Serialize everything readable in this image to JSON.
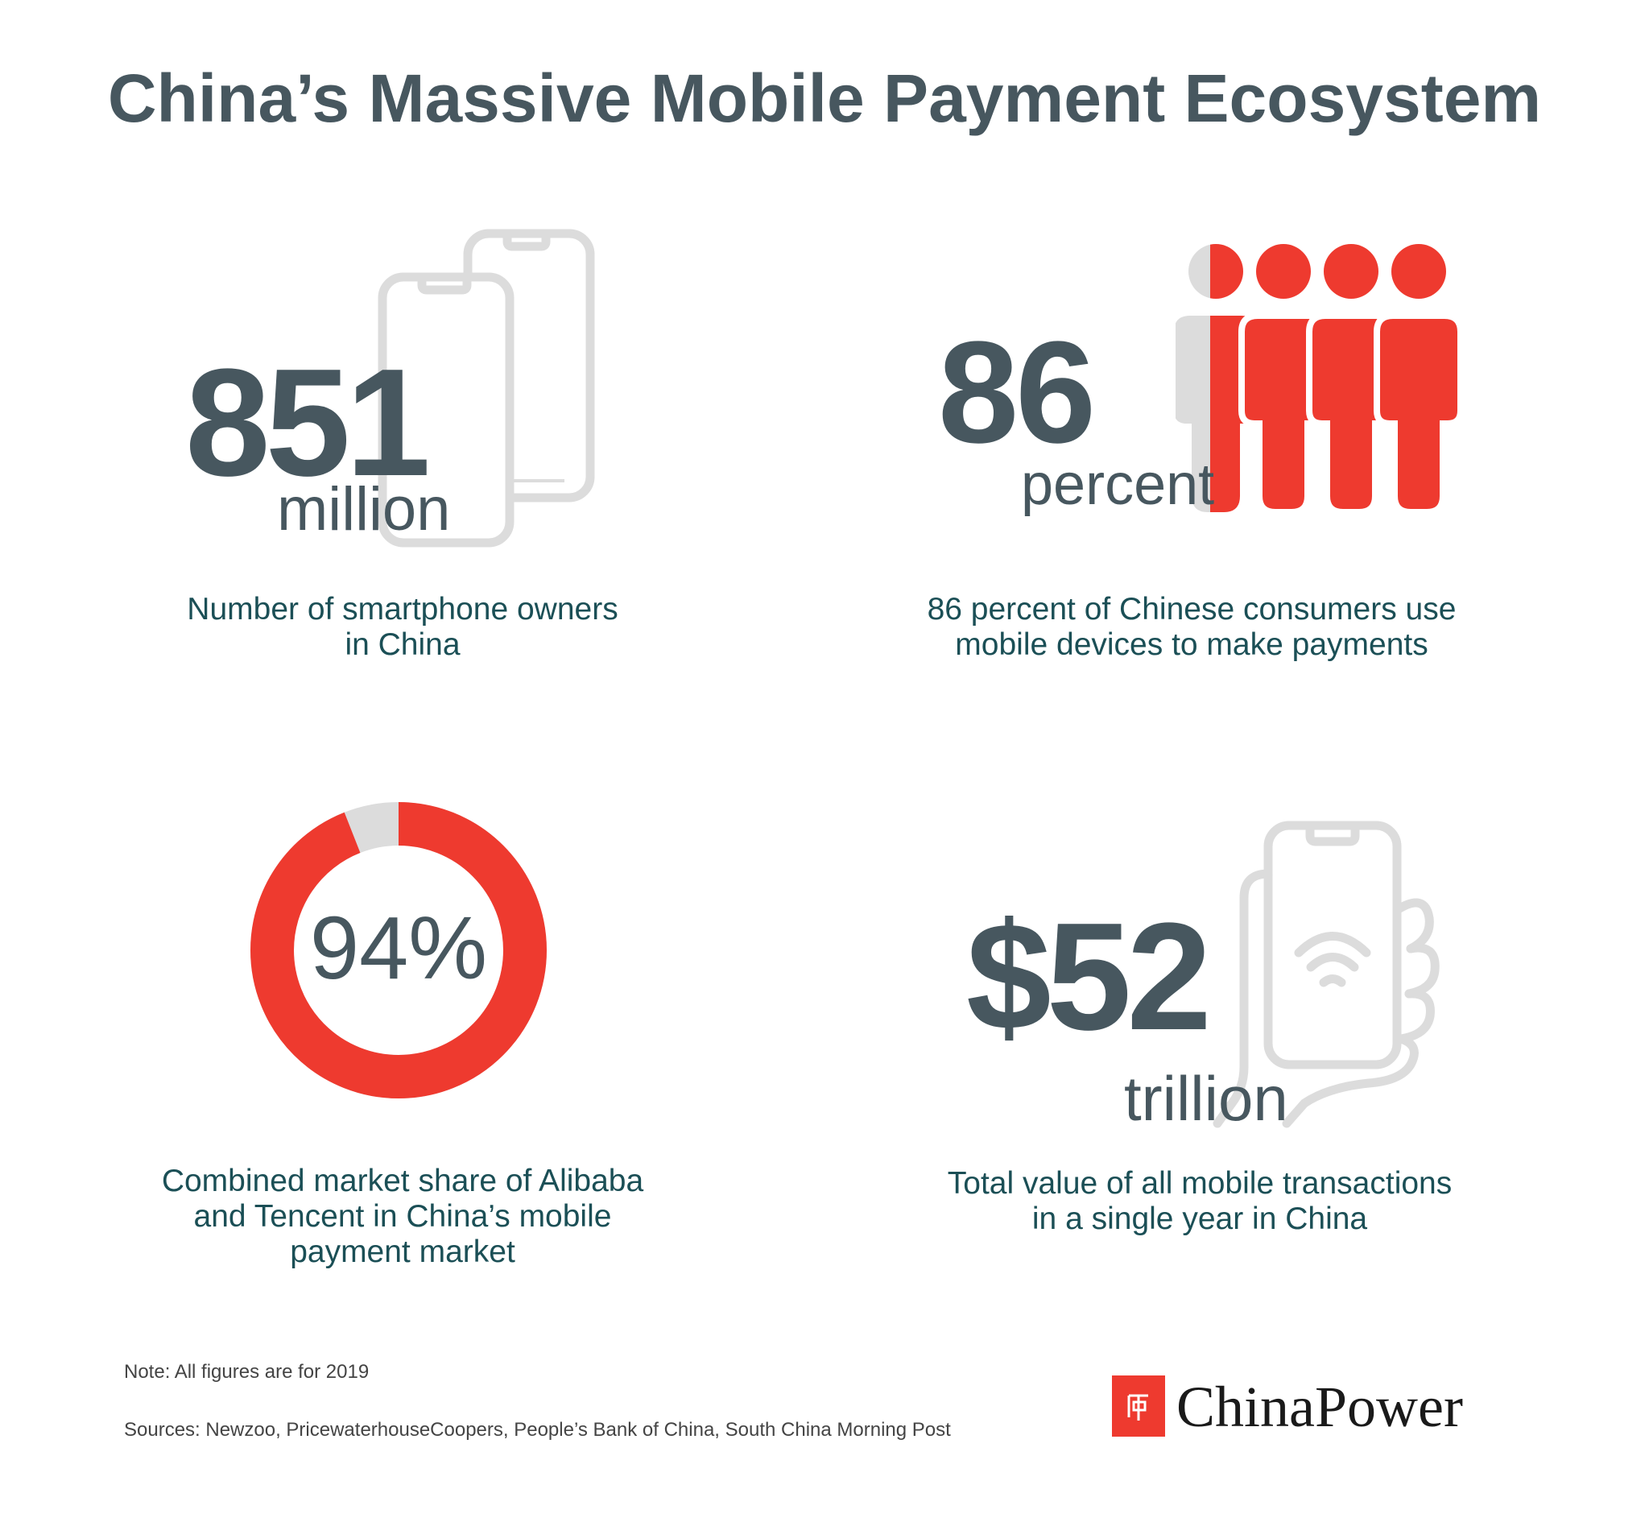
{
  "title": "China’s Massive Mobile Payment Ecosystem",
  "stats": {
    "smartphones": {
      "value": "851",
      "unit": "million",
      "description": "Number of smartphone owners in China",
      "icon": "two-smartphones-icon"
    },
    "mobile_payment_users": {
      "value": "86",
      "unit": "percent",
      "description": "86 percent of Chinese consumers use mobile devices to make payments",
      "icon": "people-group-icon",
      "level_percent": 86
    },
    "market_share": {
      "value": "94%",
      "description": "Combined market share of Alibaba and Tencent in China’s mobile payment market",
      "icon": "donut-ring-icon",
      "level_percent": 94
    },
    "transactions": {
      "value": "$52",
      "unit": "trillion",
      "description": "Total value of all mobile transactions in a single year in China",
      "icon": "hand-holding-phone-icon"
    }
  },
  "footer": {
    "note": "Note: All figures are for 2019",
    "sources": "Sources: Newzoo, PricewaterhouseCoopers, People’s Bank of China, South China Morning Post"
  },
  "brand": {
    "name": "ChinaPower",
    "logo_icon": "chinapower-logo-icon"
  },
  "colors": {
    "accent_red": "#ee3a2f",
    "light_gray": "#dcdcdc",
    "slate": "#47575f",
    "teal_text": "#1b4f56"
  }
}
